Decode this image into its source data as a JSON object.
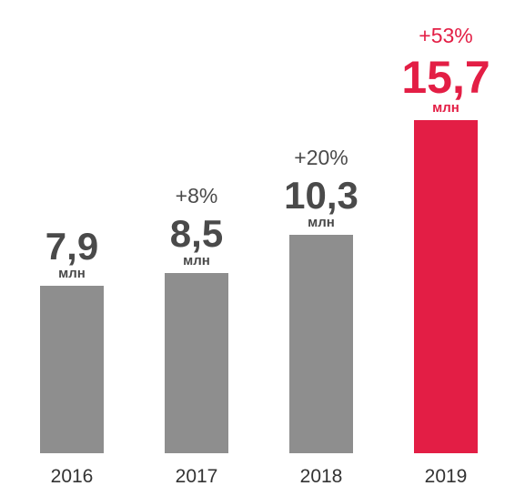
{
  "chart_data": {
    "type": "bar",
    "categories": [
      "2016",
      "2017",
      "2018",
      "2019"
    ],
    "values": [
      7.9,
      8.5,
      10.3,
      15.7
    ],
    "value_labels": [
      "7,9",
      "8,5",
      "10,3",
      "15,7"
    ],
    "unit_label": "млн",
    "growth_labels": [
      "",
      "+8%",
      "+20%",
      "+53%"
    ],
    "highlight_index": 3,
    "colors": {
      "default": "#8e8e8e",
      "highlight": "#e31e45",
      "text": "#4a4a4a"
    },
    "ylim": [
      0,
      17
    ],
    "title": "",
    "xlabel": "",
    "ylabel": "",
    "grid": false
  }
}
